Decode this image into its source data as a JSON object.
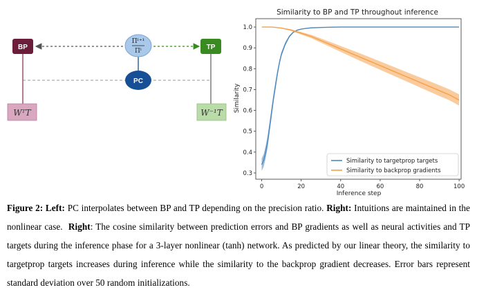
{
  "diagram": {
    "bp_label": "BP",
    "tp_label": "TP",
    "pc_label": "PC",
    "ratio_num": "Πˡ⁺¹",
    "ratio_den": "Πˡ",
    "bp_box": "WᵀT",
    "tp_box": "W⁻¹T",
    "colors": {
      "bp": "#6b1d3a",
      "tp": "#3a8a22",
      "pc": "#164f96",
      "ratio": "#a9c8ea",
      "bp_box": "#d9a7c0",
      "tp_box": "#b9dca9"
    }
  },
  "chart_data": {
    "type": "line",
    "title": "Similarity to BP and TP throughout inference",
    "xlabel": "Inference step",
    "ylabel": "Similarity",
    "xlim": [
      -3,
      101
    ],
    "ylim": [
      0.27,
      1.04
    ],
    "xticks": [
      0,
      20,
      40,
      60,
      80,
      100
    ],
    "yticks": [
      0.3,
      0.4,
      0.5,
      0.6,
      0.7,
      0.8,
      0.9,
      1.0
    ],
    "legend_position": "bottom-right",
    "grid": false,
    "series": [
      {
        "name": "Similarity to targetprop targets",
        "color": "#4c87bd",
        "x": [
          0,
          1,
          2,
          3,
          4,
          5,
          6,
          7,
          8,
          9,
          10,
          12,
          14,
          16,
          18,
          20,
          22,
          25,
          30,
          35,
          40,
          60,
          80,
          100
        ],
        "y": [
          0.34,
          0.36,
          0.4,
          0.45,
          0.52,
          0.59,
          0.66,
          0.72,
          0.78,
          0.83,
          0.87,
          0.92,
          0.955,
          0.975,
          0.985,
          0.99,
          0.993,
          0.996,
          0.998,
          0.999,
          1.0,
          1.0,
          1.0,
          1.0
        ],
        "spread": [
          0.03,
          0.03,
          0.03,
          0.03,
          0.025,
          0.025,
          0.02,
          0.02,
          0.015,
          0.012,
          0.01,
          0.008,
          0.005,
          0.003,
          0.002,
          0.001,
          0.001,
          0,
          0,
          0,
          0,
          0,
          0,
          0
        ]
      },
      {
        "name": "Similarity to backprop gradients",
        "color": "#f5a04a",
        "x": [
          0,
          5,
          10,
          15,
          20,
          25,
          30,
          35,
          40,
          45,
          50,
          55,
          60,
          65,
          70,
          75,
          80,
          85,
          90,
          95,
          100
        ],
        "y": [
          1.0,
          1.0,
          0.995,
          0.985,
          0.97,
          0.955,
          0.935,
          0.915,
          0.895,
          0.875,
          0.855,
          0.835,
          0.815,
          0.795,
          0.775,
          0.755,
          0.735,
          0.715,
          0.695,
          0.675,
          0.65
        ],
        "spread": [
          0,
          0,
          0.002,
          0.004,
          0.006,
          0.008,
          0.01,
          0.012,
          0.014,
          0.016,
          0.018,
          0.019,
          0.02,
          0.021,
          0.022,
          0.023,
          0.024,
          0.025,
          0.026,
          0.026,
          0.027
        ]
      }
    ]
  },
  "caption": {
    "fig": "Figure 2:",
    "left_b": "Left:",
    "left_t": "PC interpolates between BP and TP depending on the precision ratio.",
    "right_b": "Right:",
    "right_t": "Intuitions are maintained in the nonlinear case.",
    "right2_b": "Right",
    "rest": ": The cosine similarity between prediction errors and BP gradients as well as neural activities and TP targets during the inference phase for a 3-layer nonlinear (tanh) network. As predicted by our linear theory, the similarity to targetprop targets increases during inference while the similarity to the backprop gradient decreases. Error bars represent standard deviation over 50 random initializations."
  }
}
